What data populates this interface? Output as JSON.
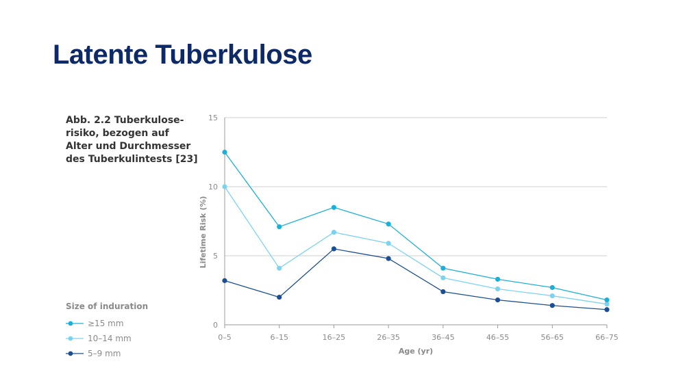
{
  "slide": {
    "title": "Latente Tuberkulose",
    "caption": "Abb. 2.2 Tuberkulose-\nrisiko, bezogen auf\nAlter und Durchmesser\ndes Tuberkulintests [23]"
  },
  "legend": {
    "title": "Size of induration"
  },
  "chart_data": {
    "type": "line",
    "xlabel": "Age (yr)",
    "ylabel": "Lifetime Risk (%)",
    "categories": [
      "0–5",
      "6–15",
      "16–25",
      "26–35",
      "36–45",
      "46–55",
      "56–65",
      "66–75"
    ],
    "ylim": [
      0,
      15
    ],
    "yticks": [
      0,
      5,
      10,
      15
    ],
    "grid": "horizontal",
    "legend_position": "bottom-left",
    "series": [
      {
        "name": "≥15 mm",
        "color": "#1ab0d8",
        "values": [
          12.5,
          7.1,
          8.5,
          7.3,
          4.1,
          3.3,
          2.7,
          1.8
        ]
      },
      {
        "name": "10–14 mm",
        "color": "#7dd3ee",
        "values": [
          10.0,
          4.1,
          6.7,
          5.9,
          3.4,
          2.6,
          2.1,
          1.5
        ]
      },
      {
        "name": "5–9 mm",
        "color": "#1c4f91",
        "values": [
          3.2,
          2.0,
          5.5,
          4.8,
          2.4,
          1.8,
          1.4,
          1.1
        ]
      }
    ]
  }
}
